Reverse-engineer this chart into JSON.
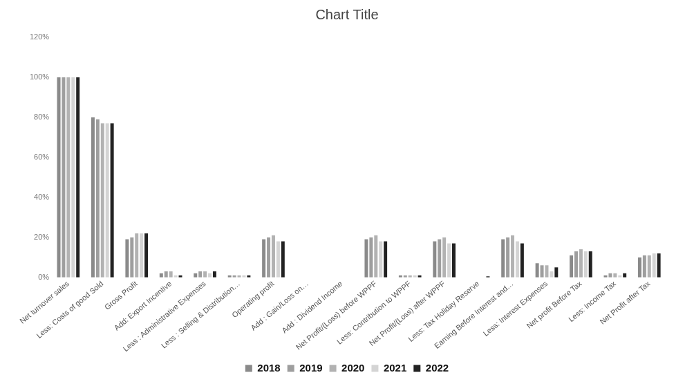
{
  "chart_data": {
    "type": "bar",
    "title": "Chart Title",
    "categories": [
      "Net turnover sales",
      "Less: Costs of good Sold",
      "Gross Profit",
      "Add: Export Incentive",
      "Less : Administrative Expenses",
      "Less : Selling & Distribution…",
      "Operating profit",
      "Add : Gain/Loss on…",
      "Add : Dividend Income",
      "Net Profit/(Loss) before WPPF",
      "Less: Contribution to WPPF",
      "Net Profit/(Loss) after WPPF",
      "Less: Tax Holiday Reserve",
      "Earning Before Interest and…",
      "Less: Interest Expenses",
      "Net profit Before Tax",
      "Less: Income Tax",
      "Net Profit after Tax"
    ],
    "series": [
      {
        "name": "2018",
        "color": "#8a8a8a",
        "values": [
          100,
          80,
          19,
          2,
          2,
          1,
          19,
          0,
          0,
          19,
          1,
          18,
          0,
          19,
          7,
          11,
          1,
          10
        ]
      },
      {
        "name": "2019",
        "color": "#9e9e9e",
        "values": [
          100,
          79,
          20,
          3,
          3,
          1,
          20,
          0,
          0,
          20,
          1,
          19,
          0,
          20,
          6,
          13,
          2,
          11
        ]
      },
      {
        "name": "2020",
        "color": "#b2b2b2",
        "values": [
          100,
          77,
          22,
          3,
          3,
          1,
          21,
          0,
          0,
          21,
          1,
          20,
          0,
          21,
          6,
          14,
          2,
          11
        ]
      },
      {
        "name": "2021",
        "color": "#d4d4d4",
        "values": [
          100,
          77,
          22,
          1,
          2,
          1,
          18,
          0,
          0,
          18,
          1,
          17,
          0,
          18,
          3,
          13,
          1,
          12
        ]
      },
      {
        "name": "2022",
        "color": "#222222",
        "values": [
          100,
          77,
          22,
          1,
          3,
          1,
          18,
          0,
          0,
          18,
          1,
          17,
          0.5,
          17,
          5,
          13,
          2,
          12
        ]
      }
    ],
    "ylim": [
      0,
      120
    ],
    "yticks": [
      {
        "value": 0,
        "label": "0%"
      },
      {
        "value": 20,
        "label": "20%"
      },
      {
        "value": 40,
        "label": "40%"
      },
      {
        "value": 60,
        "label": "60%"
      },
      {
        "value": 80,
        "label": "80%"
      },
      {
        "value": 100,
        "label": "100%"
      },
      {
        "value": 120,
        "label": "120%"
      }
    ],
    "grid": false,
    "legend": "bottom"
  }
}
